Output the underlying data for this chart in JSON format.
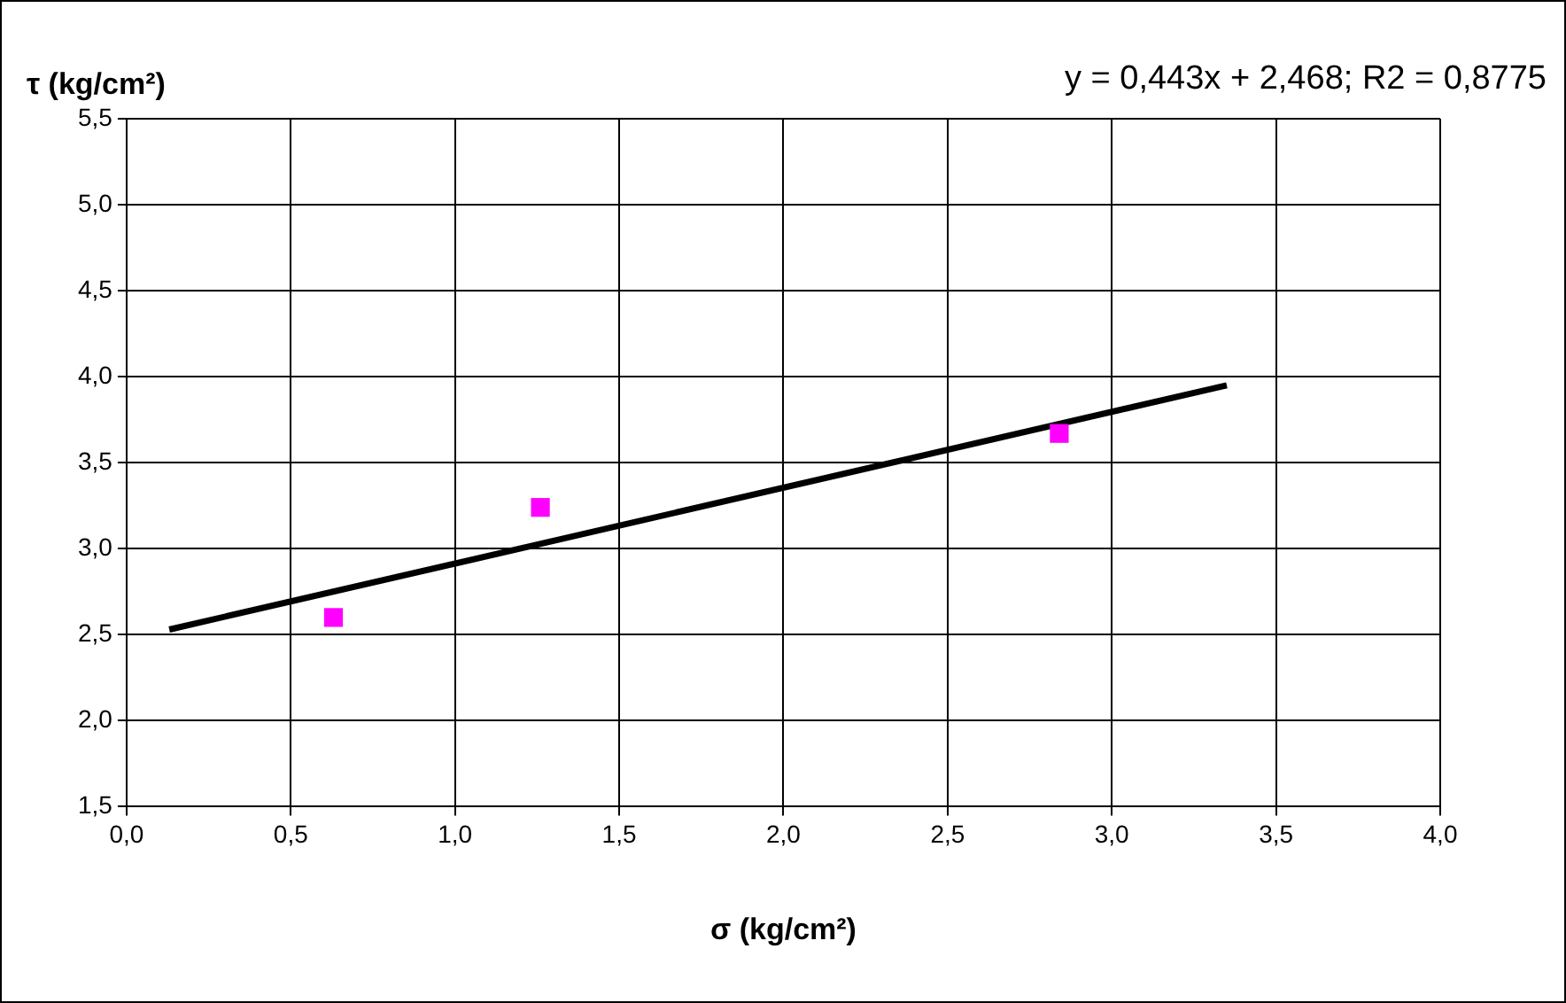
{
  "chart_data": {
    "type": "scatter",
    "xlabel": "σ (kg/cm²)",
    "ylabel": "τ (kg/cm²)",
    "annotations": [
      "y = 0,443x + 2,468; R2 = 0,8775"
    ],
    "series": [
      {
        "type": "scatter",
        "color": "#ff00ff",
        "marker": "square",
        "x": [
          0.63,
          1.26,
          2.84
        ],
        "values": [
          2.6,
          3.24,
          3.67
        ]
      },
      {
        "type": "line",
        "color": "#000000",
        "marker": "none",
        "x": [
          0.13,
          3.35
        ],
        "values": [
          2.53,
          3.95
        ]
      }
    ],
    "xlim": [
      0,
      4
    ],
    "ylim": [
      1.5,
      5.5
    ],
    "xticks": [
      {
        "value": 0,
        "label": "0,0"
      },
      {
        "value": 0.5,
        "label": "0,5"
      },
      {
        "value": 1,
        "label": "1,0"
      },
      {
        "value": 1.5,
        "label": "1,5"
      },
      {
        "value": 2,
        "label": "2,0"
      },
      {
        "value": 2.5,
        "label": "2,5"
      },
      {
        "value": 3,
        "label": "3,0"
      },
      {
        "value": 3.5,
        "label": "3,5"
      },
      {
        "value": 4,
        "label": "4,0"
      }
    ],
    "yticks": [
      {
        "value": 1.5,
        "label": "1,5"
      },
      {
        "value": 2,
        "label": "2,0"
      },
      {
        "value": 2.5,
        "label": "2,5"
      },
      {
        "value": 3,
        "label": "3,0"
      },
      {
        "value": 3.5,
        "label": "3,5"
      },
      {
        "value": 4,
        "label": "4,0"
      },
      {
        "value": 4.5,
        "label": "4,5"
      },
      {
        "value": 5,
        "label": "5,0"
      },
      {
        "value": 5.5,
        "label": "5,5"
      }
    ],
    "grid": true,
    "legend": false
  }
}
